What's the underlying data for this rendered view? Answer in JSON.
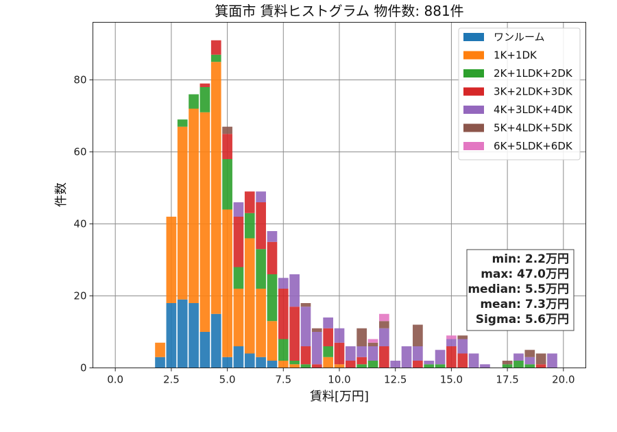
{
  "chart_data": {
    "type": "bar",
    "stacked": true,
    "title": "箕面市 賃料ヒストグラム  物件数: 881件",
    "xlabel": "賃料[万円]",
    "ylabel": "件数",
    "xlim": [
      -1.0,
      21.0
    ],
    "ylim": [
      0,
      96
    ],
    "x_ticks": [
      "0.0",
      "2.5",
      "5.0",
      "7.5",
      "10.0",
      "12.5",
      "15.0",
      "17.5",
      "20.0"
    ],
    "y_ticks": [
      "0",
      "20",
      "40",
      "60",
      "80"
    ],
    "grid": true,
    "legend_position": "top-right",
    "bin_width": 0.5,
    "bins": [
      2.0,
      2.5,
      3.0,
      3.5,
      4.0,
      4.5,
      5.0,
      5.5,
      6.0,
      6.5,
      7.0,
      7.5,
      8.0,
      8.5,
      9.0,
      9.5,
      10.0,
      10.5,
      11.0,
      11.5,
      12.0,
      12.5,
      13.0,
      13.5,
      14.0,
      14.5,
      15.0,
      15.5,
      16.0,
      16.5,
      17.0,
      17.5,
      18.0,
      18.5,
      19.0,
      19.5
    ],
    "series": [
      {
        "name": "ワンルーム",
        "color": "#1f77b4",
        "values": [
          3,
          18,
          19,
          18,
          10,
          15,
          3,
          6,
          4,
          3,
          2,
          0,
          0,
          0,
          0,
          0,
          0,
          0,
          0,
          0,
          0,
          0,
          0,
          0,
          0,
          0,
          0,
          0,
          0,
          0,
          0,
          0,
          0,
          0,
          0,
          0
        ]
      },
      {
        "name": "1K+1DK",
        "color": "#ff7f0e",
        "values": [
          4,
          24,
          48,
          54,
          61,
          70,
          41,
          16,
          32,
          19,
          11,
          2,
          1,
          0,
          0,
          3,
          1,
          0,
          0,
          0,
          0,
          0,
          0,
          0,
          0,
          0,
          0,
          0,
          0,
          0,
          0,
          0,
          0,
          0,
          0,
          0
        ]
      },
      {
        "name": "2K+1LDK+2DK",
        "color": "#2ca02c",
        "values": [
          0,
          0,
          2,
          4,
          7,
          2,
          14,
          6,
          7,
          11,
          13,
          6,
          1,
          1,
          0,
          3,
          0,
          0,
          1,
          2,
          0,
          0,
          0,
          0,
          1,
          1,
          0,
          0,
          0,
          0,
          0,
          1,
          2,
          1,
          0,
          0
        ]
      },
      {
        "name": "3K+2LDK+3DK",
        "color": "#d62728",
        "values": [
          0,
          0,
          0,
          0,
          1,
          4,
          7,
          14,
          6,
          13,
          9,
          14,
          15,
          5,
          1,
          5,
          6,
          2,
          2,
          0,
          6,
          0,
          0,
          2,
          0,
          0,
          6,
          4,
          0,
          0,
          0,
          0,
          0,
          0,
          1,
          0
        ]
      },
      {
        "name": "4K+3LDK+4DK",
        "color": "#9467bd",
        "values": [
          0,
          0,
          0,
          0,
          0,
          0,
          0,
          4,
          0,
          3,
          3,
          3,
          9,
          11,
          9,
          3,
          4,
          4,
          3,
          4,
          5,
          2,
          6,
          4,
          1,
          4,
          2,
          4,
          4,
          1,
          0,
          0,
          2,
          2,
          0,
          4
        ]
      },
      {
        "name": "5K+4LDK+5DK",
        "color": "#8c564b",
        "values": [
          0,
          0,
          0,
          0,
          0,
          0,
          2,
          0,
          0,
          0,
          0,
          0,
          0,
          1,
          1,
          0,
          0,
          0,
          5,
          1,
          2,
          0,
          0,
          6,
          0,
          0,
          0,
          1,
          0,
          0,
          0,
          1,
          0,
          2,
          3,
          0
        ]
      },
      {
        "name": "6K+5LDK+6DK",
        "color": "#e377c2",
        "values": [
          0,
          0,
          0,
          0,
          0,
          0,
          0,
          0,
          0,
          0,
          0,
          0,
          0,
          0,
          0,
          0,
          0,
          0,
          0,
          1,
          2,
          0,
          0,
          0,
          0,
          0,
          1,
          0,
          0,
          0,
          0,
          0,
          0,
          0,
          0,
          0
        ]
      }
    ],
    "stats_box": [
      "min: 2.2万円",
      "max: 47.0万円",
      "median: 5.5万円",
      "mean: 7.3万円",
      "Sigma: 5.6万円"
    ]
  }
}
